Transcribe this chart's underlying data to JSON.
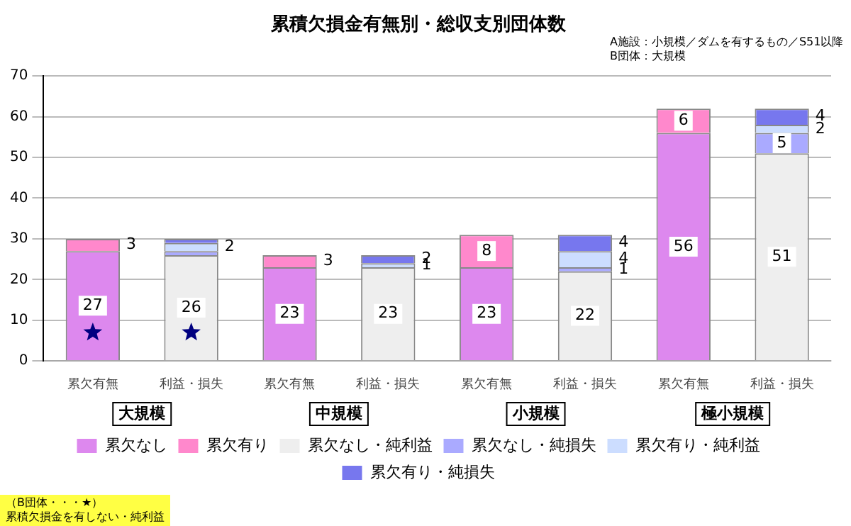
{
  "chart_data": {
    "type": "bar",
    "title": "累積欠損金有無別・総収支別団体数",
    "stacked": true,
    "categories": [
      "累欠有無",
      "利益・損失",
      "累欠有無",
      "利益・損失",
      "累欠有無",
      "利益・損失",
      "累欠有無",
      "利益・損失"
    ],
    "series": [
      {
        "name": "累欠なし",
        "color": "#dd88ee",
        "values": [
          27,
          null,
          23,
          null,
          23,
          null,
          56,
          null
        ],
        "value_labels": [
          "27",
          null,
          "23",
          null,
          "23",
          null,
          "56",
          null
        ]
      },
      {
        "name": "累欠有り",
        "color": "#ff88cc",
        "values": [
          3,
          null,
          3,
          null,
          8,
          null,
          6,
          null
        ],
        "value_labels": [
          "3",
          null,
          "3",
          null,
          "8",
          null,
          "6",
          null
        ]
      },
      {
        "name": "累欠なし・純利益",
        "color": "#eeeeee",
        "values": [
          null,
          26,
          null,
          23,
          null,
          22,
          null,
          51
        ],
        "value_labels": [
          null,
          "26",
          null,
          "23",
          null,
          "22",
          null,
          "51"
        ]
      },
      {
        "name": "累欠なし・純損失",
        "color": "#aaaaff",
        "values": [
          null,
          1,
          null,
          0,
          null,
          1,
          null,
          5
        ],
        "value_labels": [
          null,
          null,
          null,
          null,
          null,
          "1",
          null,
          "5"
        ]
      },
      {
        "name": "累欠有り・純利益",
        "color": "#ccddff",
        "values": [
          null,
          2,
          null,
          1,
          null,
          4,
          null,
          2
        ],
        "value_labels": [
          null,
          "2",
          null,
          "1",
          null,
          "4",
          null,
          "2"
        ]
      },
      {
        "name": "累欠有り・純損失",
        "color": "#7777ee",
        "values": [
          null,
          1,
          null,
          2,
          null,
          4,
          null,
          4
        ],
        "value_labels": [
          null,
          null,
          null,
          "2",
          null,
          "4",
          null,
          "4"
        ]
      },
      {
        "type": "scatter",
        "marker": "star",
        "color": "#000080",
        "values": [
          7,
          7,
          null,
          null,
          null,
          null,
          null,
          null
        ]
      }
    ],
    "ylim": [
      0,
      70
    ],
    "yticks": [
      0,
      10,
      20,
      30,
      40,
      50,
      60,
      70
    ],
    "grid": "y",
    "legend": "bottom",
    "annotations": [
      "A施設：小規模／ダムを有するもの／S51以降",
      "B団体：大規模",
      "大規模",
      "中規模",
      "小規模",
      "極小規模",
      "（B団体・・・★）",
      "累積欠損金を有しない・純利益"
    ]
  }
}
